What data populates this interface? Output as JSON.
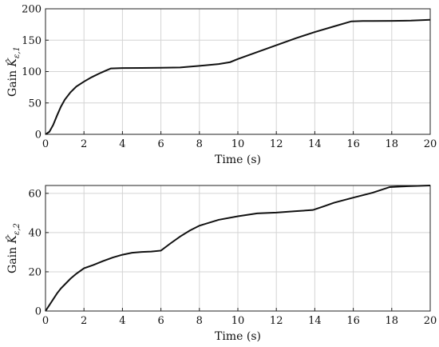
{
  "chart_data": [
    {
      "type": "line",
      "xlabel": "Time (s)",
      "ylabel": "Gain ĥKε,1",
      "ylabel_parts": {
        "prefix": "Gain ",
        "symbol": "K̂",
        "subscript": "ε,1"
      },
      "xlim": [
        0,
        20
      ],
      "ylim": [
        0,
        200
      ],
      "xticks": [
        0,
        2,
        4,
        6,
        8,
        10,
        12,
        14,
        16,
        18,
        20
      ],
      "yticks": [
        0,
        50,
        100,
        150,
        200
      ],
      "grid": true,
      "series": [
        {
          "x": [
            0,
            0.2,
            0.4,
            0.6,
            0.8,
            1.0,
            1.3,
            1.6,
            2.0,
            2.4,
            2.8,
            3.1,
            3.4,
            4.0,
            5.0,
            6.0,
            7.0,
            8.0,
            9.0,
            9.6,
            10.0,
            11.0,
            12.0,
            13.0,
            14.0,
            15.0,
            15.9,
            16.5,
            17.0,
            18.0,
            19.0,
            20.0
          ],
          "y": [
            0,
            4,
            15,
            30,
            44,
            55,
            67,
            76,
            84,
            91,
            97,
            101,
            105,
            105.5,
            105.8,
            106,
            106.5,
            109,
            112,
            115,
            120,
            131,
            142,
            153,
            163,
            172,
            180,
            180.5,
            180.6,
            180.8,
            181.2,
            182.5
          ],
          "color": "#111111"
        }
      ]
    },
    {
      "type": "line",
      "xlabel": "Time (s)",
      "ylabel": "Gain K̂ε,2",
      "ylabel_parts": {
        "prefix": "Gain ",
        "symbol": "K̂",
        "subscript": "ε,2"
      },
      "xlim": [
        0,
        20
      ],
      "ylim": [
        0,
        64
      ],
      "xticks": [
        0,
        2,
        4,
        6,
        8,
        10,
        12,
        14,
        16,
        18,
        20
      ],
      "yticks": [
        0,
        20,
        40,
        60
      ],
      "grid": true,
      "series": [
        {
          "x": [
            0,
            0.2,
            0.4,
            0.6,
            0.8,
            1.0,
            1.3,
            1.6,
            2.0,
            2.5,
            3.0,
            3.5,
            4.0,
            4.5,
            5.0,
            5.5,
            6.0,
            6.5,
            7.0,
            7.5,
            8.0,
            9.0,
            10.0,
            11.0,
            12.0,
            13.0,
            13.9,
            14.5,
            15.0,
            16.0,
            17.0,
            17.9,
            18.5,
            19.0,
            20.0
          ],
          "y": [
            0,
            3,
            6,
            9,
            11.5,
            13.5,
            16.5,
            19,
            21.8,
            23.5,
            25.5,
            27.3,
            28.7,
            29.7,
            30.1,
            30.3,
            30.8,
            34.5,
            38,
            41,
            43.5,
            46.5,
            48.3,
            49.8,
            50.2,
            50.9,
            51.5,
            53.5,
            55.2,
            57.8,
            60.3,
            63.2,
            63.5,
            63.7,
            64
          ]
        }
      ]
    }
  ]
}
